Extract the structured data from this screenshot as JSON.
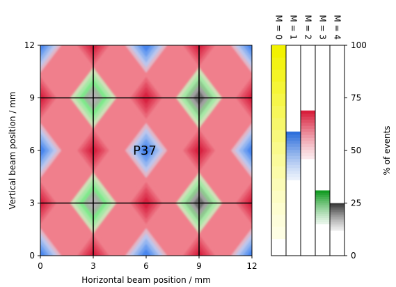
{
  "chart_data": [
    {
      "type": "heatmap",
      "title": "",
      "xlabel": "Horizontal beam position / mm",
      "ylabel": "Vertical beam position / mm",
      "xlim": [
        0,
        12
      ],
      "ylim": [
        0,
        12
      ],
      "xticks": [
        "0",
        "3",
        "6",
        "9",
        "12"
      ],
      "yticks": [
        "0",
        "3",
        "6",
        "9",
        "12"
      ],
      "annotation": "P37",
      "gridlines_mm": [
        3,
        9
      ],
      "legend": [
        {
          "label": "M = 0",
          "color": "#f2f200"
        },
        {
          "label": "M = 1",
          "color": "#2e6fdb"
        },
        {
          "label": "M = 2",
          "color": "#d81f3c"
        },
        {
          "label": "M = 3",
          "color": "#129b22"
        },
        {
          "label": "M = 4",
          "color": "#3a3a3a"
        }
      ],
      "cells": [
        {
          "x": 0,
          "y": 0,
          "M": 1
        },
        {
          "x": 0,
          "y": 6,
          "M": 1
        },
        {
          "x": 0,
          "y": 12,
          "M": 1
        },
        {
          "x": 6,
          "y": 0,
          "M": 1
        },
        {
          "x": 6,
          "y": 6,
          "M": 1
        },
        {
          "x": 6,
          "y": 12,
          "M": 1
        },
        {
          "x": 12,
          "y": 0,
          "M": 1
        },
        {
          "x": 12,
          "y": 6,
          "M": 1
        },
        {
          "x": 12,
          "y": 12,
          "M": 1
        },
        {
          "x": 3,
          "y": 0,
          "M": 2
        },
        {
          "x": 9,
          "y": 0,
          "M": 2
        },
        {
          "x": 3,
          "y": 6,
          "M": 2
        },
        {
          "x": 9,
          "y": 6,
          "M": 2
        },
        {
          "x": 3,
          "y": 12,
          "M": 2
        },
        {
          "x": 9,
          "y": 12,
          "M": 2
        },
        {
          "x": 0,
          "y": 3,
          "M": 2
        },
        {
          "x": 6,
          "y": 3,
          "M": 2
        },
        {
          "x": 12,
          "y": 3,
          "M": 2
        },
        {
          "x": 0,
          "y": 9,
          "M": 2
        },
        {
          "x": 6,
          "y": 9,
          "M": 2
        },
        {
          "x": 12,
          "y": 9,
          "M": 2
        },
        {
          "x": 3,
          "y": 3,
          "M": 3
        },
        {
          "x": 3,
          "y": 9,
          "M": 3
        },
        {
          "x": 9,
          "y": 3,
          "M": 4
        },
        {
          "x": 9,
          "y": 9,
          "M": 4
        }
      ]
    },
    {
      "type": "bar",
      "title": "",
      "ylabel": "% of events",
      "ylim": [
        0,
        100
      ],
      "yticks": [
        "0",
        "25",
        "50",
        "75",
        "100"
      ],
      "categories": [
        "M = 0",
        "M = 1",
        "M = 2",
        "M = 3",
        "M = 4"
      ],
      "colors": [
        "#f2f200",
        "#2e6fdb",
        "#d81f3c",
        "#129b22",
        "#3a3a3a"
      ],
      "bar_top": [
        100,
        59,
        69,
        31,
        25
      ],
      "bar_bottom": [
        8,
        36,
        46,
        15,
        12
      ]
    }
  ]
}
